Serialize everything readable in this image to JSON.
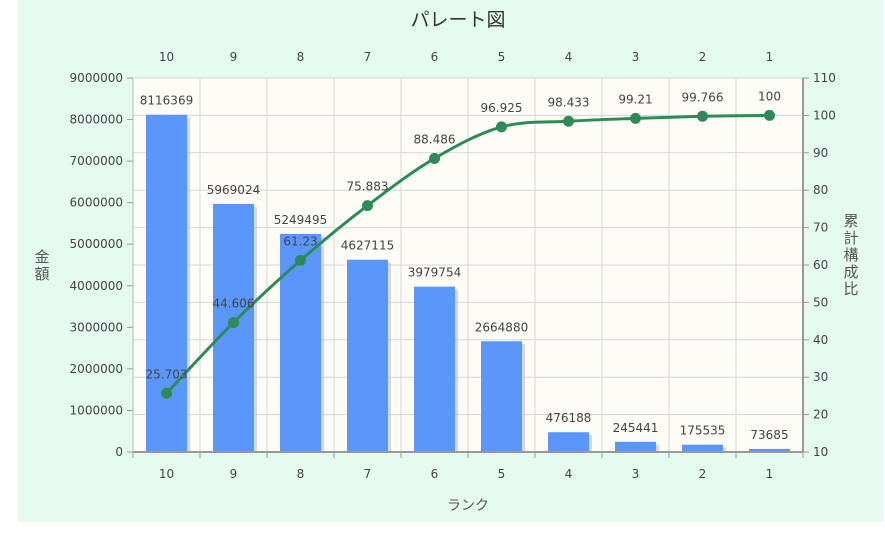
{
  "chart_data": {
    "type": "bar",
    "title": "パレート図",
    "xlabel": "ランク",
    "ylabel": "金額",
    "y2label": "累計構成比",
    "categories": [
      "10",
      "9",
      "8",
      "7",
      "6",
      "5",
      "4",
      "3",
      "2",
      "1"
    ],
    "series": [
      {
        "type": "bar",
        "axis": "left",
        "values": [
          8116369,
          5969024,
          5249495,
          4627115,
          3979754,
          2664880,
          476188,
          245441,
          175535,
          73685
        ],
        "labels": [
          "8116369",
          "5969024",
          "5249495",
          "4627115",
          "3979754",
          "2664880",
          "476188",
          "245441",
          "175535",
          "73685"
        ]
      },
      {
        "type": "line",
        "axis": "right",
        "values": [
          25.703,
          44.606,
          61.23,
          75.883,
          88.486,
          96.925,
          98.433,
          99.21,
          99.766,
          100
        ],
        "labels": [
          "25.703",
          "44.606",
          "61.23",
          "75.883",
          "88.486",
          "96.925",
          "98.433",
          "99.21",
          "99.766",
          "100"
        ]
      }
    ],
    "ylim": [
      0,
      9000000
    ],
    "y2lim": [
      10,
      110
    ],
    "yticks": [
      "0",
      "1000000",
      "2000000",
      "3000000",
      "4000000",
      "5000000",
      "6000000",
      "7000000",
      "8000000",
      "9000000"
    ],
    "y2ticks": [
      "10",
      "20",
      "30",
      "40",
      "50",
      "60",
      "70",
      "80",
      "90",
      "100",
      "110"
    ],
    "grid": true,
    "colors": {
      "background": "#e6fbf0",
      "plot_background": "#fdfcf6",
      "bar": "#5b96fb",
      "line": "#2e8b57"
    }
  }
}
